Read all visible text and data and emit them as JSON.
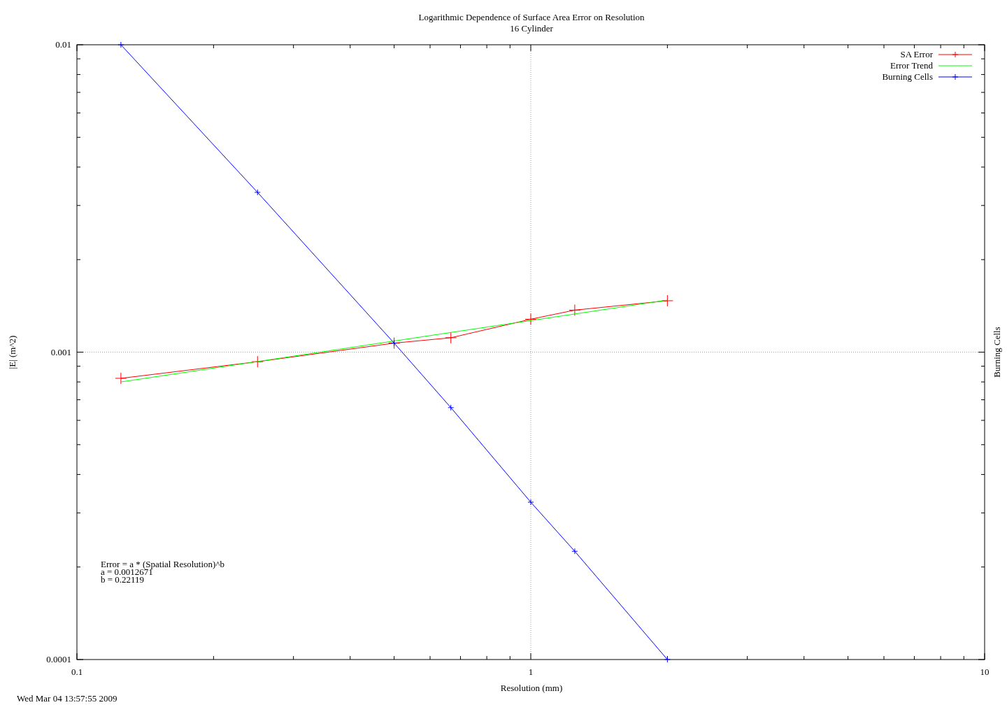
{
  "chart_data": {
    "type": "line",
    "title": "Logarithmic Dependence of Surface Area Error on Resolution",
    "subtitle": "16 Cylinder",
    "xlabel": "Resolution (mm)",
    "ylabel": "|E| (m^2)",
    "y2label": "Burning Cells",
    "x": [
      0.125,
      0.25,
      0.5,
      0.6667,
      1,
      1.25,
      2
    ],
    "series": [
      {
        "name": "SA Error",
        "color": "#ff0000",
        "marker": "cross",
        "values": [
          0.000822,
          0.000931,
          0.00107,
          0.001114,
          0.00128,
          0.00137,
          0.00147
        ]
      },
      {
        "name": "Error Trend",
        "color": "#00ff00",
        "marker": "none",
        "values": [
          0.0008,
          0.000932,
          0.001087,
          0.001159,
          0.001267,
          0.001331,
          0.001477
        ]
      },
      {
        "name": "Burning Cells",
        "color": "#0000ff",
        "marker": "cross",
        "values": [
          0.01,
          0.00331,
          0.00107,
          0.00066,
          0.000325,
          0.000225,
          0.0001
        ]
      }
    ],
    "log": "xy",
    "xlim": [
      0.1,
      10
    ],
    "ylim": [
      0.0001,
      0.01
    ],
    "xticks": [
      0.1,
      {
        "value": 0.2,
        "label": null
      },
      {
        "value": 0.3,
        "label": null
      },
      {
        "value": 0.4,
        "label": null
      },
      {
        "value": 0.5,
        "label": null
      },
      {
        "value": 0.6,
        "label": null
      },
      {
        "value": 0.7,
        "label": null
      },
      {
        "value": 0.8,
        "label": null
      },
      {
        "value": 0.9,
        "label": null
      },
      1,
      {
        "value": 2,
        "label": null
      },
      {
        "value": 3,
        "label": null
      },
      {
        "value": 4,
        "label": null
      },
      {
        "value": 5,
        "label": null
      },
      {
        "value": 6,
        "label": null
      },
      {
        "value": 7,
        "label": null
      },
      {
        "value": 8,
        "label": null
      },
      {
        "value": 9,
        "label": null
      },
      10
    ],
    "yticks": [
      0.0001,
      {
        "value": 0.0002,
        "label": null
      },
      {
        "value": 0.0003,
        "label": null
      },
      {
        "value": 0.0004,
        "label": null
      },
      {
        "value": 0.0005,
        "label": null
      },
      {
        "value": 0.0006,
        "label": null
      },
      {
        "value": 0.0007,
        "label": null
      },
      {
        "value": 0.0008,
        "label": null
      },
      {
        "value": 0.0009,
        "label": null
      },
      0.001,
      {
        "value": 0.002,
        "label": null
      },
      {
        "value": 0.003,
        "label": null
      },
      {
        "value": 0.004,
        "label": null
      },
      {
        "value": 0.005,
        "label": null
      },
      {
        "value": 0.006,
        "label": null
      },
      {
        "value": 0.007,
        "label": null
      },
      {
        "value": 0.008,
        "label": null
      },
      {
        "value": 0.009,
        "label": null
      },
      0.01
    ],
    "grid": true,
    "legend": "top right",
    "line_style": "solid",
    "annotations": [
      "Error = a * (Spatial Resolution)^b",
      "a = 0.0012671",
      "b = 0.22119",
      "Wed Mar 04 13:57:55 2009"
    ]
  }
}
